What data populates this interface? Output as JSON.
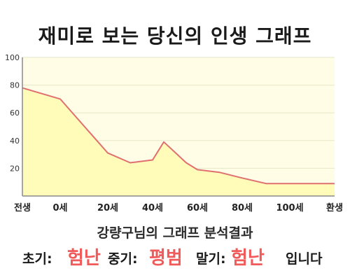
{
  "title": "재미로 보는 당신의 인생 그래프",
  "colors": {
    "plot_background": "#fffde6",
    "area_fill": "#fffbb8",
    "line": "#e07070",
    "grid": "#e6e6c8",
    "axis": "#8a8a8a",
    "result_value": "#f05a5a"
  },
  "chart_data": {
    "type": "area",
    "title": "재미로 보는 당신의 인생 그래프",
    "xlabel": "",
    "ylabel": "",
    "x_tick_labels": [
      "전생",
      "0세",
      "20세",
      "40세",
      "60세",
      "80세",
      "100세",
      "환생"
    ],
    "y_ticks": [
      20,
      40,
      60,
      80,
      100
    ],
    "ylim": [
      0,
      100
    ],
    "grid": true,
    "legend": "none",
    "x": [
      -20,
      0,
      20,
      30,
      40,
      45,
      55,
      60,
      70,
      80,
      90,
      100,
      115
    ],
    "values": [
      78,
      70,
      31,
      24,
      26,
      39,
      24,
      19,
      17,
      13,
      9,
      9,
      9
    ]
  },
  "summary": {
    "heading": "강량구님의 그래프 분석결과",
    "early_label": "초기:",
    "early_value": "험난",
    "middle_label": "중기:",
    "middle_value": "평범",
    "late_label": "말기:",
    "late_value": "험난",
    "ending": "입니다"
  }
}
